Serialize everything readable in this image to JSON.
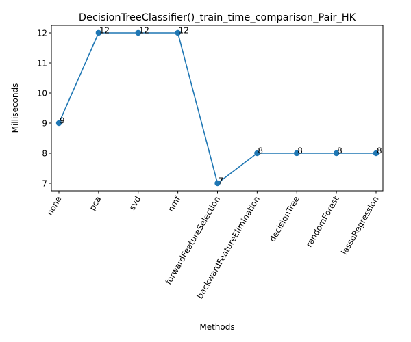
{
  "chart_data": {
    "type": "line",
    "title": "DecisionTreeClassifier()_train_time_comparison_Pair_HK",
    "xlabel": "Methods",
    "ylabel": "Milliseconds",
    "categories": [
      "none",
      "pca",
      "svd",
      "nmf",
      "forwardFeatureSelection",
      "backwardFeatureElimination",
      "decisionTree",
      "randomForest",
      "lassoRegression"
    ],
    "values": [
      9,
      12,
      12,
      12,
      7,
      8,
      8,
      8,
      8
    ],
    "ylim": [
      6.75,
      12.25
    ],
    "yticks": [
      7,
      8,
      9,
      10,
      11,
      12
    ],
    "grid": false,
    "x_tick_rotation": 60,
    "marker": "circle",
    "data_labels": true,
    "series_color": "#1f77b4"
  }
}
